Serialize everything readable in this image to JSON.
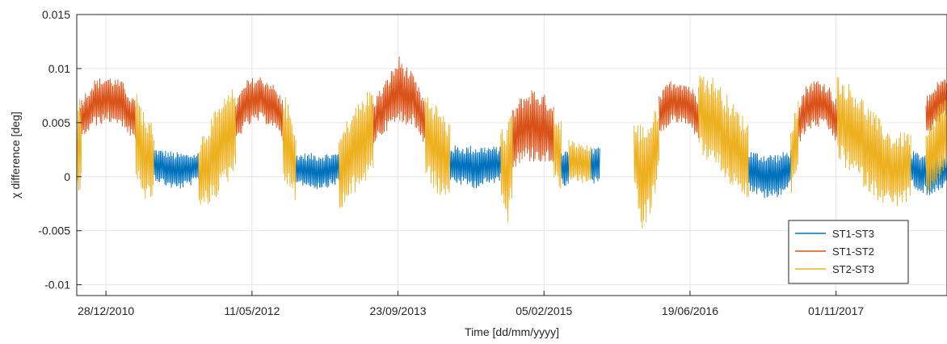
{
  "chart_data": {
    "type": "line",
    "title": "",
    "xlabel": "Time [dd/mm/yyyy]",
    "ylabel": "χ difference [deg]",
    "x_ticks": [
      "28/12/2010",
      "11/05/2012",
      "23/09/2013",
      "05/02/2015",
      "19/06/2016",
      "01/11/2017"
    ],
    "y_ticks": [
      -0.01,
      -0.005,
      0,
      0.005,
      0.01,
      0.015
    ],
    "y_tick_labels": [
      "-0.01",
      "-0.005",
      "0",
      "0.005",
      "0.01",
      "0.015"
    ],
    "xlim": [
      "19/09/2010",
      "16/11/2018"
    ],
    "ylim": [
      -0.011,
      0.015
    ],
    "grid": true,
    "legend_position": "bottom-right",
    "series": [
      {
        "name": "ST1-ST3",
        "color": "#0072BD",
        "segments": [
          {
            "start": "10/06/2011",
            "end": "10/11/2011",
            "center": [
              0.0012,
              0.0008,
              0.0005,
              0.0006,
              0.0009
            ],
            "amplitude": [
              0.0015,
              0.0017,
              0.0018,
              0.0016,
              0.0014
            ]
          },
          {
            "start": "08/10/2012",
            "end": "05/03/2013",
            "center": [
              0.0008,
              0.0006,
              0.0005,
              0.0006,
              0.0008
            ],
            "amplitude": [
              0.0014,
              0.0016,
              0.0017,
              0.0016,
              0.0015
            ]
          },
          {
            "start": "20/03/2014",
            "end": "10/09/2014",
            "center": [
              0.0012,
              0.001,
              0.0009,
              0.001,
              0.0012
            ],
            "amplitude": [
              0.0017,
              0.0019,
              0.002,
              0.0019,
              0.0016
            ]
          },
          {
            "start": "05/04/2015",
            "end": "01/05/2015",
            "center": [
              0.001,
              0.0008,
              0.0009
            ],
            "amplitude": [
              0.0016,
              0.0017,
              0.0016
            ]
          },
          {
            "start": "15/07/2015",
            "end": "15/08/2015",
            "center": [
              0.0012,
              0.001,
              0.0011
            ],
            "amplitude": [
              0.0017,
              0.0018,
              0.0016
            ]
          },
          {
            "start": "05/01/2017",
            "end": "30/05/2017",
            "center": [
              0.0006,
              0.0002,
              0.0,
              0.0002,
              0.0008
            ],
            "amplitude": [
              0.0019,
              0.0021,
              0.0022,
              0.002,
              0.0018
            ]
          },
          {
            "start": "15/07/2018",
            "end": "25/11/2018",
            "center": [
              0.0008,
              0.0004,
              0.0002,
              0.0004,
              0.0008
            ],
            "amplitude": [
              0.0016,
              0.0019,
              0.002,
              0.0019,
              0.0016
            ]
          }
        ]
      },
      {
        "name": "ST1-ST2",
        "color": "#D95319",
        "segments": [
          {
            "start": "01/10/2010",
            "end": "08/04/2011",
            "center": [
              0.0052,
              0.0068,
              0.0072,
              0.0068,
              0.005
            ],
            "amplitude": [
              0.002,
              0.0022,
              0.0022,
              0.0021,
              0.002
            ]
          },
          {
            "start": "16/03/2012",
            "end": "25/08/2012",
            "center": [
              0.0052,
              0.0068,
              0.0072,
              0.0068,
              0.0052
            ],
            "amplitude": [
              0.002,
              0.0022,
              0.0022,
              0.0021,
              0.002
            ]
          },
          {
            "start": "30/06/2013",
            "end": "25/12/2013",
            "center": [
              0.005,
              0.0066,
              0.008,
              0.0072,
              0.005
            ],
            "amplitude": [
              0.0021,
              0.0024,
              0.0032,
              0.0024,
              0.0021
            ]
          },
          {
            "start": "20/10/2014",
            "end": "10/03/2015",
            "center": [
              0.0035,
              0.0045,
              0.0048,
              0.0045,
              0.004
            ],
            "amplitude": [
              0.0028,
              0.0032,
              0.0035,
              0.0032,
              0.003
            ]
          },
          {
            "start": "05/03/2016",
            "end": "18/07/2016",
            "center": [
              0.0055,
              0.0068,
              0.007,
              0.0066,
              0.0055
            ],
            "amplitude": [
              0.002,
              0.0021,
              0.0021,
              0.0021,
              0.002
            ]
          },
          {
            "start": "25/06/2017",
            "end": "05/11/2017",
            "center": [
              0.005,
              0.0065,
              0.0068,
              0.0065,
              0.005
            ],
            "amplitude": [
              0.0021,
              0.0023,
              0.0023,
              0.0022,
              0.0021
            ]
          },
          {
            "start": "05/09/2018",
            "end": "16/11/2018",
            "center": [
              0.0055,
              0.0068,
              0.0075
            ],
            "amplitude": [
              0.0019,
              0.002,
              0.0019
            ]
          }
        ]
      },
      {
        "name": "ST2-ST3",
        "color": "#EDB120",
        "segments": [
          {
            "start": "19/09/2010",
            "end": "05/10/2010",
            "center": [
              0.003,
              0.0032
            ],
            "amplitude": [
              0.0045,
              0.0045
            ]
          },
          {
            "start": "08/04/2011",
            "end": "10/06/2011",
            "center": [
              0.004,
              0.0025,
              0.0015,
              0.0012
            ],
            "amplitude": [
              0.004,
              0.0042,
              0.004,
              0.0036
            ]
          },
          {
            "start": "10/11/2011",
            "end": "16/03/2012",
            "center": [
              0.0,
              0.0015,
              0.003,
              0.0045
            ],
            "amplitude": [
              0.0035,
              0.004,
              0.0042,
              0.004
            ]
          },
          {
            "start": "25/08/2012",
            "end": "08/10/2012",
            "center": [
              0.004,
              0.0025,
              0.0012
            ],
            "amplitude": [
              0.004,
              0.004,
              0.0035
            ]
          },
          {
            "start": "05/03/2013",
            "end": "30/06/2013",
            "center": [
              0.0,
              0.002,
              0.0032,
              0.0045
            ],
            "amplitude": [
              0.0038,
              0.004,
              0.0042,
              0.004
            ]
          },
          {
            "start": "25/12/2013",
            "end": "20/03/2014",
            "center": [
              0.004,
              0.0025,
              0.0012
            ],
            "amplitude": [
              0.004,
              0.0042,
              0.0038
            ]
          },
          {
            "start": "10/09/2014",
            "end": "20/10/2014",
            "center": [
              0.002,
              0.0,
              0.0025
            ],
            "amplitude": [
              0.0035,
              0.005,
              0.0045
            ]
          },
          {
            "start": "10/03/2015",
            "end": "05/04/2015",
            "center": [
              0.003,
              0.002
            ],
            "amplitude": [
              0.0035,
              0.0032
            ]
          },
          {
            "start": "01/05/2015",
            "end": "15/07/2015",
            "center": [
              0.0015,
              0.001
            ],
            "amplitude": [
              0.002,
              0.0018
            ]
          },
          {
            "start": "10/12/2015",
            "end": "05/03/2016",
            "center": [
              0.002,
              0.0,
              0.001,
              0.0035
            ],
            "amplitude": [
              0.003,
              0.005,
              0.0045,
              0.0035
            ]
          },
          {
            "start": "18/07/2016",
            "end": "05/01/2017",
            "center": [
              0.006,
              0.005,
              0.003,
              0.0015
            ],
            "amplitude": [
              0.0038,
              0.0042,
              0.004,
              0.0036
            ]
          },
          {
            "start": "30/05/2017",
            "end": "25/06/2017",
            "center": [
              0.0015,
              0.0035
            ],
            "amplitude": [
              0.0035,
              0.004
            ]
          },
          {
            "start": "05/11/2017",
            "end": "15/07/2018",
            "center": [
              0.0055,
              0.004,
              0.002,
              0.0005,
              0.001
            ],
            "amplitude": [
              0.004,
              0.0042,
              0.004,
              0.0035,
              0.0033
            ]
          },
          {
            "start": "25/11/2018",
            "end": "05/09/2018",
            "center": [
              0.0015,
              0.0025,
              0.0035,
              0.0045
            ],
            "amplitude": [
              0.0032,
              0.0035,
              0.0037,
              0.0035
            ]
          }
        ]
      }
    ]
  }
}
